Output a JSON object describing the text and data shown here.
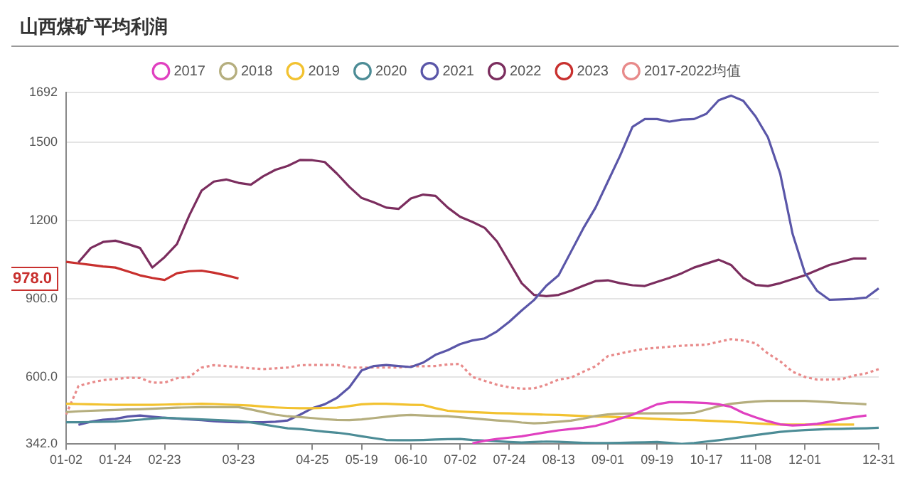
{
  "chart_data": {
    "type": "line",
    "title": "山西煤矿平均利润",
    "categories": [
      "01-02",
      null,
      null,
      null,
      "01-24",
      null,
      null,
      null,
      "02-23",
      null,
      null,
      null,
      null,
      null,
      "03-23",
      null,
      null,
      null,
      null,
      null,
      "04-25",
      null,
      null,
      null,
      "05-19",
      null,
      null,
      null,
      "06-10",
      null,
      null,
      null,
      "07-02",
      null,
      null,
      null,
      "07-24",
      null,
      null,
      null,
      "08-13",
      null,
      null,
      null,
      "09-01",
      null,
      null,
      null,
      "09-19",
      null,
      null,
      null,
      "10-17",
      null,
      null,
      null,
      "11-08",
      null,
      null,
      null,
      "12-01",
      null,
      null,
      null,
      null,
      null,
      "12-31"
    ],
    "series": [
      {
        "name": "2017",
        "color": "#e040c0",
        "values": [
          null,
          null,
          null,
          null,
          null,
          null,
          null,
          null,
          null,
          null,
          null,
          null,
          null,
          null,
          null,
          null,
          null,
          null,
          null,
          null,
          null,
          null,
          null,
          null,
          null,
          null,
          null,
          null,
          null,
          null,
          null,
          null,
          null,
          345,
          355,
          362,
          367,
          372,
          380,
          388,
          395,
          400,
          405,
          412,
          425,
          440,
          455,
          475,
          495,
          503,
          503,
          502,
          500,
          495,
          485,
          462,
          445,
          430,
          418,
          414,
          416,
          420,
          428,
          437,
          446,
          452,
          null
        ]
      },
      {
        "name": "2018",
        "color": "#b5ae7e",
        "values": [
          465,
          468,
          470,
          472,
          473,
          475,
          476,
          478,
          480,
          482,
          483,
          484,
          484,
          484,
          484,
          475,
          465,
          455,
          449,
          446,
          442,
          438,
          435,
          434,
          437,
          442,
          447,
          452,
          454,
          452,
          450,
          449,
          445,
          441,
          437,
          433,
          430,
          425,
          422,
          424,
          428,
          432,
          440,
          450,
          456,
          459,
          460,
          460,
          460,
          460,
          460,
          462,
          475,
          488,
          497,
          502,
          506,
          508,
          508,
          508,
          508,
          506,
          503,
          500,
          498,
          495,
          null
        ]
      },
      {
        "name": "2019",
        "color": "#f2c230",
        "values": [
          497,
          496,
          495,
          494,
          493,
          493,
          493,
          493,
          494,
          495,
          496,
          497,
          496,
          494,
          492,
          490,
          486,
          483,
          481,
          480,
          480,
          481,
          482,
          488,
          495,
          497,
          497,
          495,
          493,
          492,
          480,
          470,
          467,
          465,
          463,
          461,
          460,
          458,
          457,
          455,
          454,
          452,
          450,
          448,
          447,
          445,
          443,
          441,
          439,
          437,
          435,
          434,
          432,
          430,
          428,
          425,
          422,
          419,
          417,
          417,
          417,
          417,
          417,
          417,
          417,
          null,
          null
        ]
      },
      {
        "name": "2020",
        "color": "#4c8c96",
        "values": [
          426,
          426,
          427,
          428,
          429,
          432,
          436,
          440,
          443,
          441,
          439,
          437,
          435,
          433,
          430,
          426,
          418,
          410,
          403,
          400,
          395,
          390,
          386,
          380,
          372,
          365,
          358,
          357,
          357,
          358,
          360,
          361,
          362,
          358,
          356,
          353,
          350,
          348,
          350,
          352,
          351,
          349,
          347,
          346,
          346,
          347,
          348,
          349,
          350,
          347,
          343,
          346,
          352,
          357,
          363,
          370,
          377,
          383,
          389,
          393,
          396,
          398,
          400,
          401,
          402,
          403,
          405
        ]
      },
      {
        "name": "2021",
        "color": "#5a56a8",
        "values": [
          null,
          416,
          428,
          436,
          439,
          448,
          452,
          447,
          443,
          440,
          437,
          434,
          430,
          427,
          426,
          426,
          426,
          428,
          433,
          455,
          480,
          495,
          520,
          560,
          625,
          642,
          646,
          642,
          638,
          655,
          685,
          703,
          726,
          740,
          748,
          775,
          812,
          855,
          895,
          950,
          990,
          1080,
          1170,
          1250,
          1350,
          1450,
          1560,
          1590,
          1590,
          1580,
          1588,
          1590,
          1610,
          1662,
          1680,
          1660,
          1600,
          1520,
          1380,
          1150,
          1000,
          930,
          896,
          898,
          900,
          905,
          940
        ]
      },
      {
        "name": "2022",
        "color": "#7b2d5e",
        "values": [
          null,
          1040,
          1095,
          1118,
          1123,
          1110,
          1095,
          1020,
          1060,
          1110,
          1220,
          1315,
          1350,
          1358,
          1345,
          1338,
          1370,
          1395,
          1410,
          1433,
          1432,
          1425,
          1380,
          1330,
          1287,
          1270,
          1250,
          1245,
          1285,
          1300,
          1295,
          1250,
          1215,
          1195,
          1172,
          1120,
          1040,
          960,
          915,
          910,
          915,
          931,
          950,
          968,
          971,
          960,
          952,
          949,
          965,
          980,
          998,
          1020,
          1035,
          1050,
          1030,
          980,
          953,
          949,
          960,
          975,
          990,
          1010,
          1030,
          1042,
          1055,
          1055,
          null
        ]
      },
      {
        "name": "2023",
        "color": "#c8302e",
        "values": [
          1042,
          1036,
          1030,
          1024,
          1020,
          1005,
          990,
          980,
          972,
          998,
          1006,
          1008,
          1000,
          990,
          978,
          null,
          null,
          null,
          null,
          null,
          null,
          null,
          null,
          null,
          null,
          null,
          null,
          null,
          null,
          null,
          null,
          null,
          null,
          null,
          null,
          null,
          null,
          null,
          null,
          null,
          null,
          null,
          null,
          null,
          null,
          null,
          null,
          null,
          null,
          null,
          null,
          null,
          null,
          null,
          null,
          null,
          null,
          null,
          null,
          null,
          null,
          null,
          null,
          null,
          null,
          null,
          null
        ]
      },
      {
        "name": "2017-2022均值",
        "color": "#e88a8a",
        "line_style": "dotted",
        "values": [
          456,
          565,
          578,
          588,
          592,
          597,
          596,
          578,
          578,
          595,
          600,
          636,
          645,
          642,
          638,
          633,
          630,
          633,
          636,
          645,
          646,
          646,
          646,
          636,
          636,
          636,
          636,
          636,
          641,
          641,
          642,
          648,
          650,
          600,
          585,
          570,
          560,
          555,
          556,
          570,
          590,
          597,
          620,
          641,
          680,
          690,
          700,
          708,
          712,
          716,
          720,
          722,
          724,
          735,
          745,
          740,
          729,
          690,
          660,
          620,
          600,
          590,
          590,
          592,
          605,
          614,
          630
        ]
      }
    ],
    "ylim": [
      342,
      1692
    ],
    "yticks": [
      {
        "value": 342,
        "label": "342.0"
      },
      {
        "value": 600,
        "label": "600.0"
      },
      {
        "value": 900,
        "label": "900.0"
      },
      1200,
      1500,
      1692
    ],
    "annotations": [
      "978.0"
    ],
    "grid": "y",
    "legend": "top",
    "marker": "none",
    "line_style": "solid"
  }
}
